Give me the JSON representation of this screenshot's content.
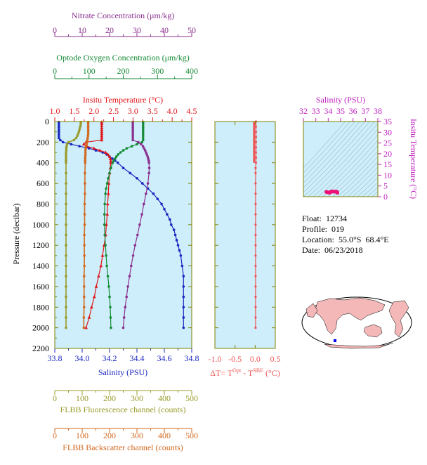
{
  "colors": {
    "nitrate": "#8b2f8f",
    "oxygen": "#158a35",
    "temperature": "#e0161b",
    "salinity": "#1a26c0",
    "fluorescence": "#9a9a2a",
    "backscatter": "#d2691e",
    "deltaT": "#ee5555",
    "tsSalinityAxis": "#c020c0",
    "tsTempAxis": "#c020c0",
    "tsPoints": "#ee1177",
    "frame": "#808000",
    "panelFill": "#cdeefa",
    "mapLand": "#f4b8b8",
    "mapOcean": "#ffffff",
    "floatMarker": "#0000ff"
  },
  "axes": {
    "nitrate": {
      "label": "Nitrate Concentration (μm/kg)",
      "ticks": [
        "0",
        "10",
        "20",
        "30",
        "40",
        "50"
      ],
      "range": [
        0,
        50
      ]
    },
    "oxygen": {
      "label": "Optode Oxygen Concentration (μm/kg)",
      "ticks": [
        "0",
        "100",
        "200",
        "300",
        "400"
      ],
      "range": [
        0,
        400
      ]
    },
    "temperature": {
      "label": "Insitu Temperature (°C)",
      "ticks": [
        "1.0",
        "1.5",
        "2.0",
        "2.5",
        "3.0",
        "3.5",
        "4.0",
        "4.5"
      ],
      "range": [
        1.0,
        4.5
      ]
    },
    "pressure": {
      "label": "Pressure (decibar)",
      "ticks": [
        "0",
        "200",
        "400",
        "600",
        "800",
        "1000",
        "1200",
        "1400",
        "1600",
        "1800",
        "2000",
        "2200"
      ],
      "range": [
        0,
        2200
      ]
    },
    "salinity": {
      "label": "Salinity (PSU)",
      "ticks": [
        "33.8",
        "34.0",
        "34.2",
        "34.4",
        "34.6",
        "34.8"
      ],
      "range": [
        33.8,
        34.8
      ]
    },
    "fluorescence": {
      "label": "FLBB Fluorescence channel (counts)",
      "ticks": [
        "0",
        "100",
        "200",
        "300",
        "400",
        "500"
      ],
      "range": [
        0,
        500
      ]
    },
    "backscatter": {
      "label": "FLBB Backscatter channel (counts)",
      "ticks": [
        "0",
        "100",
        "200",
        "300",
        "400",
        "500"
      ],
      "range": [
        0,
        500
      ]
    },
    "deltaT": {
      "label_main": "ΔT= T",
      "sup1": "Opt",
      "label_mid": " - T",
      "sup2": "SBE",
      "label_end": " (°C)",
      "ticks": [
        "-1.0",
        "-0.5",
        "0.0",
        "0.5"
      ],
      "range": [
        -1.0,
        0.5
      ]
    },
    "tsSalinity": {
      "label": "Salinity (PSU)",
      "ticks": [
        "32",
        "33",
        "34",
        "35",
        "36",
        "37",
        "38"
      ],
      "range": [
        32,
        38
      ]
    },
    "tsTemperature": {
      "label": "Insitu Temperature (°C)",
      "ticks": [
        "0",
        "5",
        "10",
        "15",
        "20",
        "25",
        "30",
        "35"
      ],
      "range": [
        0,
        35
      ]
    }
  },
  "info": {
    "float": "Float:  12734",
    "profile": "Profile:  019",
    "location": "Location:  55.0°S  68.4°E",
    "date": "Date:  06/23/2018"
  },
  "chart_data": [
    {
      "type": "line",
      "panel": "profiles",
      "y_axis": "pressure (decibar)",
      "ylim": [
        0,
        2200
      ],
      "series": [
        {
          "name": "Salinity (PSU)",
          "axis": "salinity",
          "y": [
            5,
            20,
            40,
            60,
            80,
            100,
            120,
            140,
            160,
            180,
            200,
            220,
            240,
            260,
            280,
            300,
            320,
            340,
            360,
            380,
            400,
            450,
            500,
            550,
            600,
            650,
            700,
            750,
            800,
            850,
            900,
            950,
            1000,
            1050,
            1100,
            1150,
            1200,
            1250,
            1300,
            1400,
            1500,
            1600,
            1700,
            1800,
            1900,
            2000
          ],
          "x": [
            33.83,
            33.83,
            33.83,
            33.83,
            33.83,
            33.83,
            33.83,
            33.83,
            33.83,
            33.84,
            33.86,
            33.92,
            33.98,
            34.05,
            34.1,
            34.15,
            34.18,
            34.2,
            34.22,
            34.24,
            34.26,
            34.3,
            34.35,
            34.4,
            34.44,
            34.48,
            34.52,
            34.55,
            34.58,
            34.6,
            34.62,
            34.64,
            34.65,
            34.67,
            34.68,
            34.69,
            34.7,
            34.71,
            34.72,
            34.73,
            34.74,
            34.74,
            34.74,
            34.74,
            34.74,
            34.74
          ]
        },
        {
          "name": "Insitu Temperature (°C)",
          "axis": "temperature",
          "y": [
            5,
            20,
            40,
            60,
            80,
            100,
            120,
            140,
            160,
            180,
            200,
            220,
            240,
            260,
            280,
            300,
            320,
            340,
            360,
            380,
            400,
            450,
            500,
            600,
            700,
            800,
            900,
            1000,
            1100,
            1200,
            1300,
            1400,
            1500,
            1600,
            1700,
            1800,
            1900,
            2000
          ],
          "x": [
            2.2,
            2.2,
            2.2,
            2.2,
            2.2,
            2.2,
            2.2,
            2.2,
            2.2,
            2.2,
            1.8,
            1.74,
            1.82,
            2.0,
            2.15,
            2.3,
            2.36,
            2.4,
            2.42,
            2.43,
            2.43,
            2.42,
            2.4,
            2.38,
            2.37,
            2.35,
            2.34,
            2.32,
            2.3,
            2.26,
            2.22,
            2.18,
            2.12,
            2.06,
            2.01,
            1.94,
            1.88,
            1.8
          ]
        },
        {
          "name": "Optode Oxygen Concentration (μm/kg)",
          "axis": "oxygen",
          "y": [
            5,
            20,
            40,
            60,
            80,
            100,
            120,
            140,
            160,
            180,
            200,
            220,
            240,
            260,
            280,
            300,
            320,
            340,
            360,
            380,
            400,
            450,
            500,
            550,
            600,
            650,
            700,
            800,
            900,
            1000,
            1100,
            1200,
            1300,
            1400,
            1500,
            1600,
            1700,
            1800,
            1900,
            2000
          ],
          "x": [
            258,
            258,
            258,
            258,
            258,
            258,
            258,
            258,
            258,
            258,
            255,
            240,
            225,
            210,
            200,
            192,
            185,
            180,
            176,
            172,
            169,
            164,
            160,
            156,
            153,
            150,
            148,
            146,
            145,
            145,
            146,
            148,
            150,
            152,
            155,
            158,
            160,
            162,
            163,
            164
          ]
        },
        {
          "name": "Nitrate Concentration (μm/kg)",
          "axis": "nitrate",
          "y": [
            5,
            20,
            40,
            60,
            80,
            100,
            120,
            140,
            160,
            180,
            200,
            220,
            240,
            260,
            280,
            300,
            320,
            340,
            360,
            380,
            400,
            450,
            500,
            600,
            700,
            800,
            900,
            1000,
            1100,
            1200,
            1300,
            1400,
            1500,
            1600,
            1700,
            1800,
            1900,
            2000
          ],
          "x": [
            28.5,
            28.5,
            28.5,
            28.5,
            28.5,
            28.5,
            28.5,
            28.5,
            28.5,
            28.5,
            30.5,
            31.5,
            32.2,
            32.6,
            33.0,
            33.3,
            33.6,
            33.9,
            34.1,
            34.3,
            34.4,
            34.5,
            34.4,
            34.0,
            33.3,
            32.5,
            31.8,
            31.0,
            30.2,
            29.3,
            28.6,
            27.9,
            27.3,
            26.7,
            26.2,
            25.7,
            25.3,
            25.0
          ]
        },
        {
          "name": "FLBB Fluorescence channel (counts)",
          "axis": "fluorescence",
          "y": [
            5,
            20,
            40,
            60,
            80,
            100,
            120,
            140,
            160,
            180,
            200,
            220,
            240,
            260,
            280,
            300,
            320,
            340,
            360,
            380,
            400,
            500,
            600,
            700,
            800,
            900,
            1000,
            1100,
            1200,
            1300,
            1400,
            1500,
            1600,
            1700,
            1800,
            1900,
            2000
          ],
          "x": [
            95,
            95,
            94,
            92,
            90,
            88,
            85,
            82,
            78,
            70,
            50,
            45,
            43,
            42,
            42,
            41,
            41,
            41,
            41,
            41,
            41,
            41,
            41,
            41,
            41,
            41,
            41,
            41,
            41,
            41,
            41,
            41,
            41,
            41,
            41,
            41,
            41
          ]
        },
        {
          "name": "FLBB Backscatter channel (counts)",
          "axis": "backscatter",
          "y": [
            5,
            20,
            40,
            60,
            80,
            100,
            120,
            140,
            160,
            180,
            200,
            220,
            240,
            260,
            280,
            300,
            320,
            340,
            360,
            380,
            400,
            500,
            600,
            700,
            800,
            900,
            1000,
            1100,
            1200,
            1300,
            1400,
            1500,
            1600,
            1700,
            1800,
            1900,
            2000
          ],
          "x": [
            122,
            122,
            122,
            122,
            122,
            122,
            122,
            121,
            120,
            119,
            118,
            116,
            114,
            113,
            112,
            112,
            112,
            111,
            111,
            111,
            111,
            110,
            110,
            110,
            109,
            109,
            109,
            108,
            108,
            108,
            108,
            107,
            107,
            107,
            107,
            106,
            106
          ]
        }
      ]
    },
    {
      "type": "line",
      "panel": "deltaT",
      "y_axis": "pressure (decibar)",
      "ylim": [
        0,
        2200
      ],
      "xlim": [
        -1.0,
        0.5
      ],
      "y": [
        0,
        50,
        100,
        150,
        200,
        250,
        300,
        350,
        400,
        450,
        500,
        600,
        700,
        800,
        900,
        1000,
        1100,
        1200,
        1300,
        1400,
        1500,
        1600,
        1700,
        1800,
        1900,
        2000
      ],
      "x": [
        0.02,
        0.02,
        0.02,
        0.02,
        0.02,
        0.02,
        0.02,
        0.02,
        0.02,
        0.01,
        0.01,
        0.01,
        0.01,
        0.01,
        0.01,
        0.01,
        0.01,
        0.01,
        0.01,
        0.01,
        0.01,
        0.01,
        0.01,
        0.01,
        0.01,
        0.01
      ]
    },
    {
      "type": "scatter",
      "panel": "T-S diagram",
      "xlim": [
        32,
        38
      ],
      "ylim": [
        0,
        35
      ],
      "x": [
        33.85,
        33.9,
        33.95,
        34.0,
        34.05,
        34.1,
        34.15,
        34.2,
        34.22,
        34.26,
        34.3,
        34.35,
        34.4,
        34.45,
        34.5,
        34.55,
        34.6,
        34.65,
        34.7,
        34.72,
        34.74,
        34.74
      ],
      "y": [
        2.2,
        2.2,
        2.1,
        2.0,
        1.9,
        1.8,
        2.0,
        2.2,
        2.4,
        2.43,
        2.42,
        2.41,
        2.4,
        2.38,
        2.37,
        2.35,
        2.34,
        2.32,
        2.28,
        2.18,
        2.0,
        1.8
      ]
    }
  ]
}
